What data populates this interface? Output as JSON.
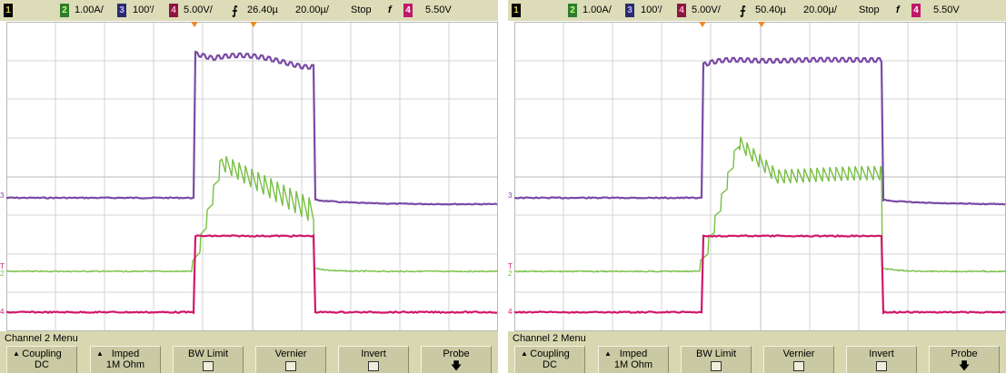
{
  "screens": [
    {
      "status": {
        "ch1_badge": "1",
        "ch2_badge": "2",
        "ch2_scale": "1.00A/",
        "ch3_badge": "3",
        "ch3_scale": "100′/",
        "ch4_badge": "4",
        "ch4_scale": "5.00V/",
        "trigger_edge_symbol": "̲̲⺿",
        "time_delay": "26.40µ",
        "time_scale": "20.00µ/",
        "run_state": "Stop",
        "trigger_slope_symbol": "f",
        "trigger_channel_badge": "4",
        "trigger_level": "5.50V"
      },
      "markers": {
        "ch3": "3",
        "trigger": "T",
        "ch2": "2",
        "ch4": "4"
      },
      "menu": {
        "title": "Channel 2  Menu",
        "softkeys": [
          {
            "label": "Coupling",
            "value": "DC"
          },
          {
            "label": "Imped",
            "value": "1M Ohm"
          },
          {
            "label": "BW Limit",
            "value": ""
          },
          {
            "label": "Vernier",
            "value": ""
          },
          {
            "label": "Invert",
            "value": ""
          },
          {
            "label": "Probe",
            "value": ""
          }
        ]
      }
    },
    {
      "status": {
        "ch1_badge": "1",
        "ch2_badge": "2",
        "ch2_scale": "1.00A/",
        "ch3_badge": "3",
        "ch3_scale": "100′/",
        "ch4_badge": "4",
        "ch4_scale": "5.00V/",
        "trigger_edge_symbol": "̲̲⺿",
        "time_delay": "50.40µ",
        "time_scale": "20.00µ/",
        "run_state": "Stop",
        "trigger_slope_symbol": "f",
        "trigger_channel_badge": "4",
        "trigger_level": "5.50V"
      },
      "markers": {
        "ch3": "3",
        "trigger": "T",
        "ch2": "2",
        "ch4": "4"
      },
      "menu": {
        "title": "Channel 2  Menu",
        "softkeys": [
          {
            "label": "Coupling",
            "value": "DC"
          },
          {
            "label": "Imped",
            "value": "1M Ohm"
          },
          {
            "label": "BW Limit",
            "value": ""
          },
          {
            "label": "Vernier",
            "value": ""
          },
          {
            "label": "Invert",
            "value": ""
          },
          {
            "label": "Probe",
            "value": ""
          }
        ]
      }
    }
  ],
  "colors": {
    "ch2_trace": "#77c043",
    "ch3_trace": "#7a4aa6",
    "ch4_trace": "#d0186a",
    "grid": "#c8c8c8",
    "marker_orange": "#f08a28"
  }
}
